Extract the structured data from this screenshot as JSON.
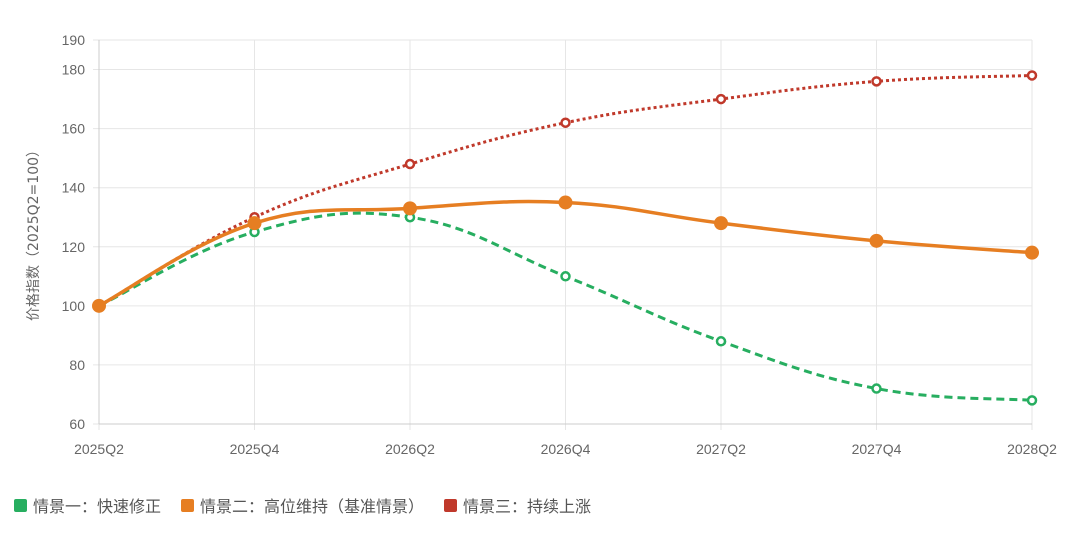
{
  "chart_data": {
    "type": "line",
    "title": "",
    "xlabel": "",
    "ylabel": "价格指数（2025Q2=100）",
    "ylim": [
      60,
      190
    ],
    "yticks": [
      60,
      80,
      100,
      120,
      140,
      160,
      180,
      190
    ],
    "categories": [
      "2025Q2",
      "2025Q4",
      "2026Q2",
      "2026Q4",
      "2027Q2",
      "2027Q4",
      "2028Q2"
    ],
    "grid": true,
    "legend_position": "bottom-left",
    "series": [
      {
        "name": "情景一：快速修正",
        "color": "#27ae60",
        "style": "dashed",
        "values": [
          100,
          125,
          130,
          110,
          88,
          72,
          68
        ]
      },
      {
        "name": "情景二：高位维持（基准情景）",
        "color": "#e67e22",
        "style": "solid",
        "values": [
          100,
          128,
          133,
          135,
          128,
          122,
          118
        ]
      },
      {
        "name": "情景三：持续上涨",
        "color": "#c0392b",
        "style": "dotted",
        "values": [
          100,
          130,
          148,
          162,
          170,
          176,
          178
        ]
      }
    ]
  }
}
